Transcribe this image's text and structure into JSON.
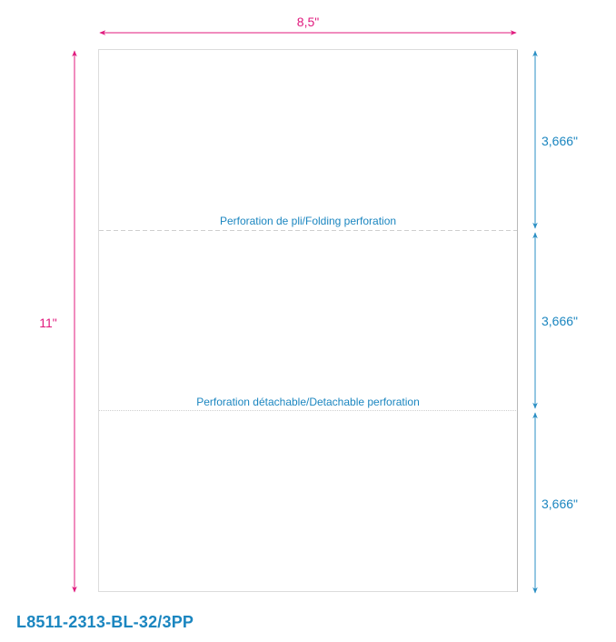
{
  "colors": {
    "width_dim": "#e0197d",
    "height_dim": "#e0197d",
    "section_dim": "#2a8fc4",
    "label": "#1b86c0",
    "sheet_border": "#d8d8d8"
  },
  "dimensions": {
    "width": "8,5\"",
    "height": "11\"",
    "sections": [
      "3,666\"",
      "3,666\"",
      "3,666\""
    ]
  },
  "perforations": {
    "folding": "Perforation de pli/Folding perforation",
    "detachable": "Perforation détachable/Detachable perforation"
  },
  "product_code": "L8511-2313-BL-32/3PP"
}
